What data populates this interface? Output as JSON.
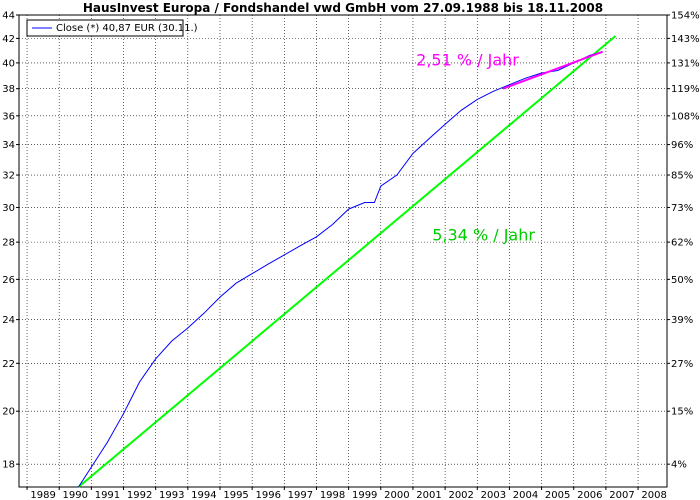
{
  "chart_data": {
    "type": "line",
    "title": "HausInvest Europa / Fondshandel vwd GmbH vom 27.09.1988 bis 18.11.2008",
    "xlabel": "",
    "ylabel": "",
    "x_ticks": [
      "1989",
      "1990",
      "1991",
      "1992",
      "1993",
      "1994",
      "1995",
      "1996",
      "1997",
      "1998",
      "1999",
      "2000",
      "2001",
      "2002",
      "2003",
      "2004",
      "2005",
      "2006",
      "2007",
      "2008"
    ],
    "xlim": [
      1988.75,
      2008.9
    ],
    "ylim": [
      17.2,
      44
    ],
    "log_scale_y": true,
    "y_ticks": [
      18,
      20,
      22,
      24,
      26,
      28,
      30,
      32,
      34,
      36,
      38,
      40,
      42,
      44
    ],
    "y2_ticks": [
      "4%",
      "15%",
      "27%",
      "39%",
      "50%",
      "62%",
      "73%",
      "85%",
      "96%",
      "108%",
      "119%",
      "131%",
      "143%",
      "154%"
    ],
    "y2_values": [
      18,
      20,
      22,
      24,
      26,
      28,
      30,
      32,
      34,
      36,
      38,
      40,
      42,
      44
    ],
    "grid": true,
    "legend": {
      "placement": "top-left",
      "entries": [
        {
          "label": "Close (*) 40,87 EUR (30.11.)",
          "color": "#0000ff"
        }
      ]
    },
    "series": [
      {
        "name": "Close (*) 40,87 EUR (30.11.)",
        "color": "#0000ff",
        "x": [
          1990.6,
          1991.0,
          1991.5,
          1992.0,
          1992.5,
          1993.0,
          1993.5,
          1994.0,
          1994.5,
          1995.0,
          1995.5,
          1996.0,
          1996.5,
          1997.0,
          1997.5,
          1998.0,
          1998.5,
          1999.0,
          1999.5,
          1999.8,
          2000.0,
          2000.5,
          2001.0,
          2001.5,
          2002.0,
          2002.5,
          2003.0,
          2003.5,
          2004.0,
          2004.5,
          2005.0,
          2005.5,
          2006.0,
          2006.5,
          2006.9
        ],
        "y": [
          17.2,
          17.9,
          18.8,
          19.9,
          21.2,
          22.2,
          23.0,
          23.6,
          24.3,
          25.1,
          25.8,
          26.3,
          26.8,
          27.3,
          27.8,
          28.3,
          29.0,
          29.9,
          30.3,
          30.3,
          31.3,
          32.0,
          33.4,
          34.4,
          35.4,
          36.4,
          37.2,
          37.8,
          38.3,
          38.8,
          39.2,
          39.4,
          40.0,
          40.6,
          40.9
        ]
      },
      {
        "name": "",
        "color": "#00ff00",
        "x": [
          1990.6,
          2007.3
        ],
        "y": [
          17.2,
          42.2
        ]
      },
      {
        "name": "",
        "color": "#ff00ff",
        "x": [
          2003.8,
          2006.9
        ],
        "y": [
          38.0,
          40.9
        ]
      }
    ],
    "annotations": [
      {
        "text": "2,51 % / Jahr",
        "color": "#ff00ff",
        "x": 2001.1,
        "y": 39.8
      },
      {
        "text": "5,34 % / Jahr",
        "color": "#00cc00",
        "x": 2001.6,
        "y": 28.1
      }
    ]
  }
}
